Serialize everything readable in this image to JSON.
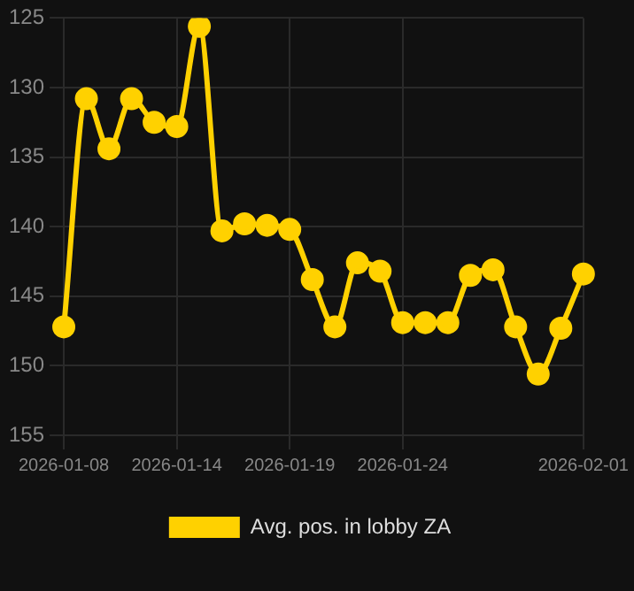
{
  "chart_data": {
    "type": "line",
    "categories": [
      "2026-01-08",
      null,
      null,
      null,
      null,
      "2026-01-14",
      null,
      null,
      null,
      null,
      "2026-01-19",
      null,
      null,
      null,
      null,
      "2026-01-24",
      null,
      null,
      null,
      null,
      null,
      null,
      null,
      "2026-02-01"
    ],
    "series": [
      {
        "name": "Avg. pos. in lobby ZA",
        "color": "#ffd100",
        "values": [
          147.2,
          130.8,
          134.4,
          130.8,
          132.5,
          132.8,
          125.6,
          140.3,
          139.8,
          139.9,
          140.2,
          143.8,
          147.2,
          142.6,
          143.2,
          146.9,
          146.9,
          146.9,
          143.5,
          143.1,
          147.2,
          150.6,
          147.3,
          143.4
        ]
      }
    ],
    "ylim": [
      155,
      125
    ],
    "yticks": [
      125,
      130,
      135,
      140,
      145,
      150,
      155
    ],
    "grid": true,
    "legend": "bottom",
    "marker": "circle",
    "line_style": "solid"
  }
}
